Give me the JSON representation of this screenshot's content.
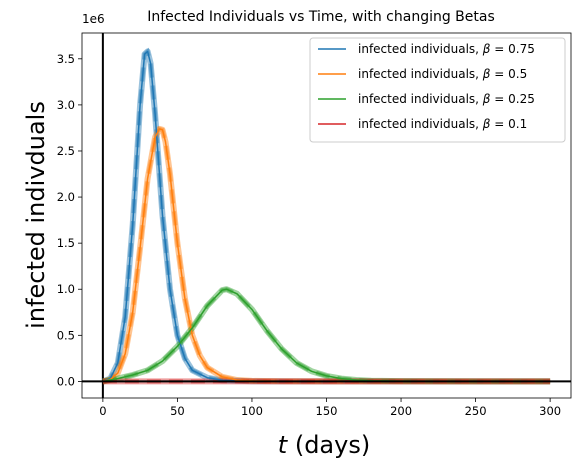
{
  "chart_data": {
    "type": "line",
    "title": "Infected Individuals vs Time, with changing Betas",
    "xlabel": "t (days)",
    "xlabel_var": "t",
    "xlabel_unit": " (days)",
    "ylabel": "infected indivduals",
    "y_offset_label": "1e6",
    "xlim": [
      -14,
      314
    ],
    "ylim": [
      -180000,
      3780000
    ],
    "xticks": [
      0,
      50,
      100,
      150,
      200,
      250,
      300
    ],
    "yticks": [
      0,
      500000,
      1000000,
      1500000,
      2000000,
      2500000,
      3000000,
      3500000
    ],
    "ytick_labels": [
      "0.0",
      "0.5",
      "1.0",
      "1.5",
      "2.0",
      "2.5",
      "3.0",
      "3.5"
    ],
    "grid": false,
    "legend_position": "top-right",
    "legend_prefix": "infected individuals, ",
    "series": [
      {
        "name": "infected individuals, β = 0.75",
        "beta": "0.75",
        "color": "#1f77b4",
        "x": [
          0,
          5,
          10,
          15,
          20,
          25,
          28,
          30,
          32,
          35,
          40,
          45,
          50,
          55,
          60,
          70,
          80,
          100,
          150,
          200,
          300
        ],
        "y": [
          0,
          30000,
          200000,
          700000,
          1700000,
          3000000,
          3550000,
          3580000,
          3450000,
          2900000,
          1800000,
          1000000,
          500000,
          250000,
          120000,
          40000,
          12000,
          2000,
          0,
          0,
          0
        ]
      },
      {
        "name": "infected individuals, β = 0.5",
        "beta": "0.5",
        "color": "#ff7f0e",
        "x": [
          0,
          5,
          10,
          15,
          20,
          25,
          30,
          35,
          38,
          40,
          42,
          45,
          50,
          55,
          60,
          65,
          70,
          80,
          90,
          100,
          120,
          150,
          200,
          300
        ],
        "y": [
          0,
          20000,
          90000,
          300000,
          750000,
          1450000,
          2200000,
          2650000,
          2740000,
          2730000,
          2600000,
          2250000,
          1500000,
          900000,
          500000,
          280000,
          150000,
          50000,
          15000,
          5000,
          1000,
          0,
          0,
          0
        ]
      },
      {
        "name": "infected individuals, β = 0.25",
        "beta": "0.25",
        "color": "#2ca02c",
        "x": [
          0,
          10,
          20,
          30,
          40,
          50,
          60,
          70,
          80,
          83,
          90,
          100,
          110,
          120,
          130,
          140,
          150,
          160,
          170,
          180,
          200,
          250,
          300
        ],
        "y": [
          0,
          30000,
          70000,
          120000,
          220000,
          380000,
          580000,
          820000,
          990000,
          1000000,
          950000,
          780000,
          550000,
          350000,
          200000,
          110000,
          60000,
          30000,
          15000,
          8000,
          3000,
          0,
          0
        ]
      },
      {
        "name": "infected individuals, β = 0.1",
        "beta": "0.1",
        "color": "#d62728",
        "x": [
          0,
          50,
          100,
          150,
          200,
          250,
          300
        ],
        "y": [
          0,
          0,
          0,
          0,
          0,
          0,
          0
        ]
      }
    ]
  }
}
